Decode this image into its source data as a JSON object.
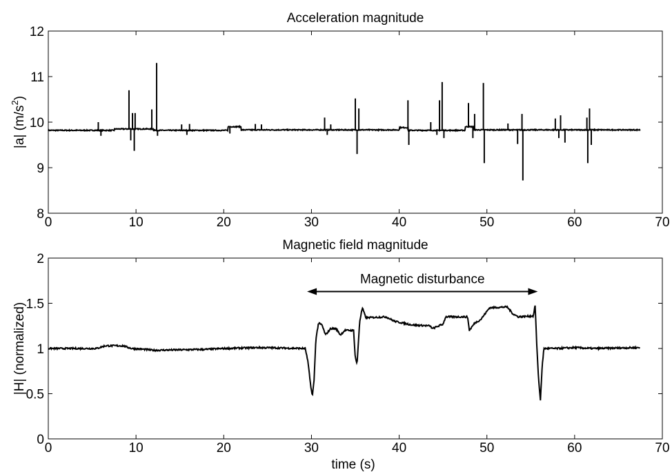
{
  "chart_data": [
    {
      "type": "line",
      "title": "Acceleration magnitude",
      "ylabel_main": "|a| (m/s",
      "ylabel_sup": "2",
      "ylabel_end": ")",
      "xlabel": "",
      "xlim": [
        0,
        70
      ],
      "ylim": [
        8,
        12
      ],
      "xticks": [
        0,
        10,
        20,
        30,
        40,
        50,
        60,
        70
      ],
      "yticks": [
        8,
        9,
        10,
        11,
        12
      ],
      "line_color": "#000000",
      "baseline": 9.82,
      "segments": [
        [
          0,
          9.82
        ],
        [
          7.5,
          9.85
        ],
        [
          12,
          9.82
        ],
        [
          20.5,
          9.9
        ],
        [
          22,
          9.83
        ],
        [
          40,
          9.88
        ],
        [
          41,
          9.82
        ],
        [
          47.5,
          9.9
        ],
        [
          48.5,
          9.83
        ],
        [
          67.5,
          9.84
        ]
      ],
      "spikes": [
        [
          5.7,
          10.0
        ],
        [
          6.0,
          9.7
        ],
        [
          9.2,
          10.7
        ],
        [
          9.4,
          9.6
        ],
        [
          9.6,
          10.2
        ],
        [
          9.8,
          9.37
        ],
        [
          9.9,
          10.2
        ],
        [
          11.8,
          10.28
        ],
        [
          12.1,
          9.85
        ],
        [
          12.35,
          11.3
        ],
        [
          12.45,
          9.7
        ],
        [
          15.2,
          9.95
        ],
        [
          15.8,
          9.72
        ],
        [
          16.1,
          9.96
        ],
        [
          20.7,
          9.75
        ],
        [
          23.6,
          9.96
        ],
        [
          24.3,
          9.95
        ],
        [
          31.5,
          10.1
        ],
        [
          31.8,
          9.72
        ],
        [
          32.2,
          9.95
        ],
        [
          35.0,
          10.52
        ],
        [
          35.2,
          9.3
        ],
        [
          35.4,
          10.3
        ],
        [
          41.0,
          10.48
        ],
        [
          41.1,
          9.5
        ],
        [
          43.6,
          10.0
        ],
        [
          44.3,
          9.72
        ],
        [
          44.6,
          10.48
        ],
        [
          44.9,
          10.88
        ],
        [
          45.1,
          9.65
        ],
        [
          47.9,
          10.42
        ],
        [
          48.4,
          9.65
        ],
        [
          48.6,
          10.18
        ],
        [
          49.6,
          10.86
        ],
        [
          49.7,
          9.1
        ],
        [
          52.4,
          9.97
        ],
        [
          53.5,
          9.52
        ],
        [
          54.0,
          10.18
        ],
        [
          54.1,
          8.72
        ],
        [
          57.8,
          10.08
        ],
        [
          58.2,
          9.65
        ],
        [
          58.4,
          10.15
        ],
        [
          58.9,
          9.55
        ],
        [
          61.4,
          10.1
        ],
        [
          61.5,
          9.1
        ],
        [
          61.7,
          10.3
        ],
        [
          61.9,
          9.5
        ]
      ]
    },
    {
      "type": "line",
      "title": "Magnetic field magnitude",
      "ylabel": "|H| (normalized)",
      "xlabel": "time (s)",
      "xlim": [
        0,
        70
      ],
      "ylim": [
        0,
        2
      ],
      "xticks": [
        0,
        10,
        20,
        30,
        40,
        50,
        60,
        70
      ],
      "yticks": [
        0,
        0.5,
        1,
        1.5,
        2
      ],
      "line_color": "#000000",
      "annotation": {
        "text": "Magnetic disturbance",
        "x_start": 29.5,
        "x_end": 55.8,
        "y": 1.63
      },
      "points": [
        [
          0,
          1.0
        ],
        [
          5.5,
          1.0
        ],
        [
          6.5,
          1.03
        ],
        [
          8.5,
          1.03
        ],
        [
          9.5,
          1.0
        ],
        [
          11,
          0.99
        ],
        [
          12,
          0.98
        ],
        [
          18,
          0.99
        ],
        [
          20,
          1.0
        ],
        [
          24,
          1.01
        ],
        [
          29.3,
          1.0
        ],
        [
          29.6,
          0.85
        ],
        [
          29.9,
          0.6
        ],
        [
          30.1,
          0.47
        ],
        [
          30.3,
          0.65
        ],
        [
          30.5,
          1.1
        ],
        [
          30.8,
          1.28
        ],
        [
          31.2,
          1.26
        ],
        [
          31.6,
          1.15
        ],
        [
          32.2,
          1.22
        ],
        [
          32.8,
          1.22
        ],
        [
          33.3,
          1.15
        ],
        [
          33.8,
          1.2
        ],
        [
          34.8,
          1.2
        ],
        [
          35.0,
          0.9
        ],
        [
          35.2,
          0.83
        ],
        [
          35.5,
          1.3
        ],
        [
          35.8,
          1.45
        ],
        [
          36.2,
          1.34
        ],
        [
          38.5,
          1.35
        ],
        [
          39.5,
          1.3
        ],
        [
          41.5,
          1.26
        ],
        [
          43.5,
          1.25
        ],
        [
          43.8,
          1.22
        ],
        [
          45.0,
          1.27
        ],
        [
          45.3,
          1.35
        ],
        [
          47.8,
          1.35
        ],
        [
          48.0,
          1.2
        ],
        [
          48.6,
          1.28
        ],
        [
          49.3,
          1.32
        ],
        [
          50.3,
          1.45
        ],
        [
          52.3,
          1.46
        ],
        [
          53.0,
          1.38
        ],
        [
          53.6,
          1.35
        ],
        [
          55.3,
          1.36
        ],
        [
          55.5,
          1.48
        ],
        [
          55.7,
          1.0
        ],
        [
          55.9,
          0.65
        ],
        [
          56.1,
          0.43
        ],
        [
          56.3,
          0.8
        ],
        [
          56.5,
          1.0
        ],
        [
          58,
          1.0
        ],
        [
          60,
          1.01
        ],
        [
          62,
          1.0
        ],
        [
          67.5,
          1.01
        ]
      ]
    }
  ]
}
